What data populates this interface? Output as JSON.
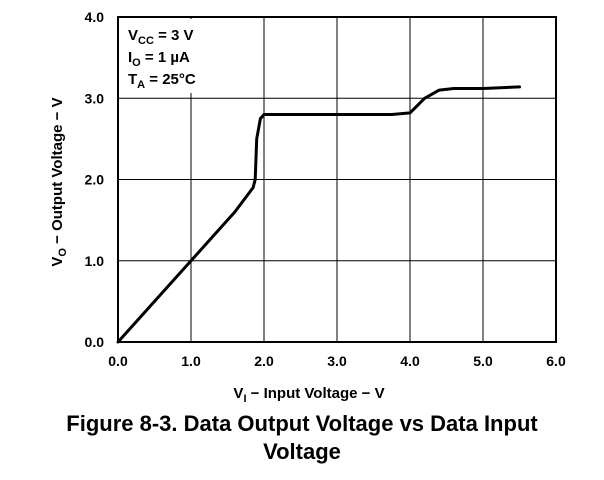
{
  "chart_data": {
    "type": "line",
    "x_range": [
      0,
      6
    ],
    "y_range": [
      0,
      4
    ],
    "grid": true,
    "x_ticks": [
      "0.0",
      "1.0",
      "2.0",
      "3.0",
      "4.0",
      "5.0",
      "6.0"
    ],
    "y_ticks": [
      "0.0",
      "1.0",
      "2.0",
      "3.0",
      "4.0"
    ],
    "x_values": [
      0.0,
      0.2,
      0.5,
      0.8,
      1.0,
      1.3,
      1.6,
      1.85,
      1.88,
      1.9,
      1.95,
      2.0,
      2.5,
      3.0,
      3.5,
      3.75,
      4.0,
      4.2,
      4.4,
      4.6,
      5.0,
      5.5
    ],
    "y_values": [
      0.0,
      0.2,
      0.5,
      0.8,
      1.0,
      1.3,
      1.6,
      1.9,
      2.0,
      2.5,
      2.75,
      2.8,
      2.8,
      2.8,
      2.8,
      2.8,
      2.82,
      3.0,
      3.1,
      3.12,
      3.12,
      3.14
    ],
    "xlabel": {
      "main": "V",
      "sub": "I",
      "rest": " − Input Voltage − V"
    },
    "ylabel": {
      "main": "V",
      "sub": "O",
      "rest": " − Output Voltage − V"
    },
    "annotations": [
      {
        "main": "V",
        "sub": "CC",
        "rest": " = 3 V"
      },
      {
        "main": "I",
        "sub": "O",
        "rest": " = 1 µA"
      },
      {
        "main": "T",
        "sub": "A",
        "rest": " = 25°C"
      }
    ],
    "colors": {
      "line": "#000000",
      "grid": "#000000",
      "frame": "#000000"
    }
  },
  "caption": {
    "line1": "Figure 8-3. Data Output Voltage vs Data Input",
    "line2": "Voltage"
  }
}
